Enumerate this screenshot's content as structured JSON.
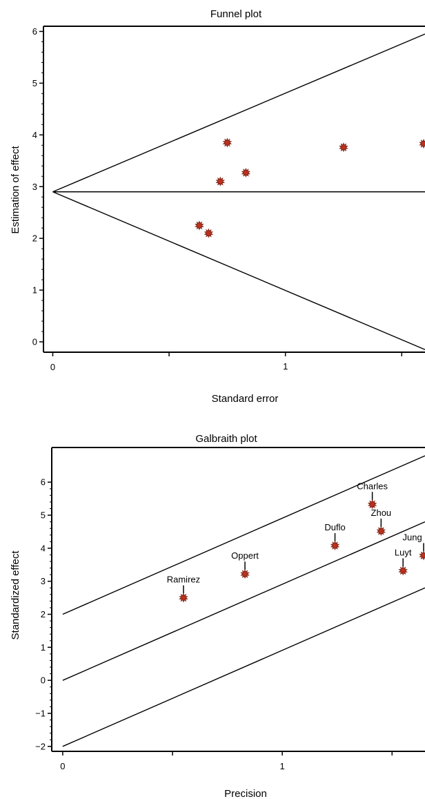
{
  "colors": {
    "marker": "#b8321f",
    "marker_edge": "#7a1d10",
    "line": "#000000"
  },
  "chart_data": [
    {
      "type": "scatter",
      "title": "Funnel plot",
      "xlabel": "Standard error",
      "ylabel": "Estimation of effect",
      "xlim": [
        -0.04,
        1.6
      ],
      "ylim": [
        -0.2,
        6.1
      ],
      "xticks": [
        {
          "v": 0,
          "label": "0"
        },
        {
          "v": 0.5,
          "label": ""
        },
        {
          "v": 1,
          "label": "1"
        },
        {
          "v": 1.5,
          "label": ""
        }
      ],
      "yticks": [
        {
          "v": 0,
          "label": "0"
        },
        {
          "v": 1,
          "label": "1"
        },
        {
          "v": 2,
          "label": "2"
        },
        {
          "v": 3,
          "label": "3"
        },
        {
          "v": 4,
          "label": "4"
        },
        {
          "v": 5,
          "label": "5"
        },
        {
          "v": 6,
          "label": "6"
        }
      ],
      "points": [
        {
          "x": 0.63,
          "y": 2.25
        },
        {
          "x": 0.67,
          "y": 2.1
        },
        {
          "x": 0.72,
          "y": 3.1
        },
        {
          "x": 0.75,
          "y": 3.85
        },
        {
          "x": 0.83,
          "y": 3.27
        },
        {
          "x": 1.25,
          "y": 3.76
        },
        {
          "x": 1.6,
          "y": 3.83
        }
      ],
      "lines": [
        {
          "x1": 0,
          "y1": 2.9,
          "x2": 1.6,
          "y2": 5.95
        },
        {
          "x1": 0,
          "y1": 2.9,
          "x2": 1.6,
          "y2": -0.15
        },
        {
          "x1": 0,
          "y1": 2.9,
          "x2": 1.6,
          "y2": 2.9
        }
      ]
    },
    {
      "type": "scatter",
      "title": "Galbraith plot",
      "xlabel": "Precision",
      "ylabel": "Standardized effect",
      "xlim": [
        -0.05,
        1.65
      ],
      "ylim": [
        -2.15,
        7.05
      ],
      "xticks": [
        {
          "v": 0,
          "label": "0"
        },
        {
          "v": 0.5,
          "label": ""
        },
        {
          "v": 1,
          "label": "1"
        },
        {
          "v": 1.5,
          "label": ""
        }
      ],
      "yticks": [
        {
          "v": -2,
          "label": "−2"
        },
        {
          "v": -1,
          "label": "−1"
        },
        {
          "v": 0,
          "label": "0"
        },
        {
          "v": 1,
          "label": "1"
        },
        {
          "v": 2,
          "label": "2"
        },
        {
          "v": 3,
          "label": "3"
        },
        {
          "v": 4,
          "label": "4"
        },
        {
          "v": 5,
          "label": "5"
        },
        {
          "v": 6,
          "label": "6"
        }
      ],
      "points": [
        {
          "name": "Ramirez",
          "x": 0.55,
          "y": 2.5
        },
        {
          "name": "Oppert",
          "x": 0.83,
          "y": 3.22
        },
        {
          "name": "Duflo",
          "x": 1.24,
          "y": 4.08
        },
        {
          "name": "Charles",
          "x": 1.41,
          "y": 5.33
        },
        {
          "name": "Zhou",
          "x": 1.45,
          "y": 4.52
        },
        {
          "name": "Luyt",
          "x": 1.55,
          "y": 3.32
        },
        {
          "name": "Jung",
          "x": 1.65,
          "y": 3.78
        }
      ],
      "lines": [
        {
          "x1": 0,
          "y1": 2,
          "x2": 1.65,
          "y2": 6.8
        },
        {
          "x1": 0,
          "y1": 0,
          "x2": 1.65,
          "y2": 4.8
        },
        {
          "x1": 0,
          "y1": -2,
          "x2": 1.65,
          "y2": 2.8
        }
      ]
    }
  ]
}
